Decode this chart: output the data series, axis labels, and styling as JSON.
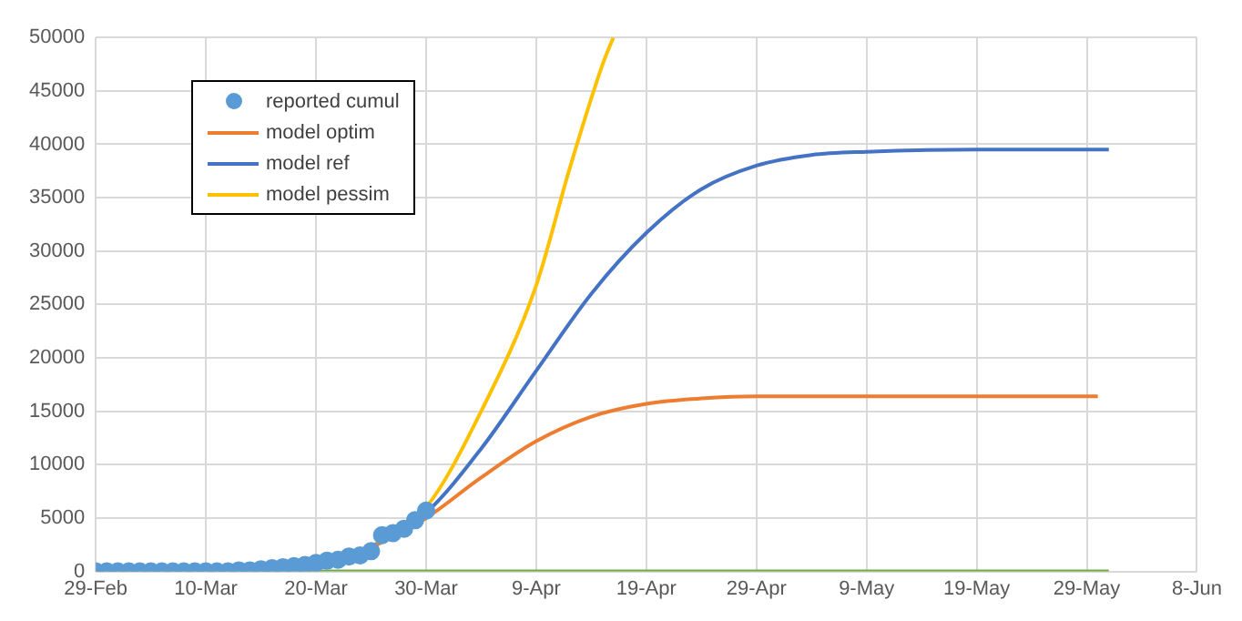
{
  "chart_data": {
    "type": "line",
    "xlim": [
      "--02-29",
      "--06-08"
    ],
    "xticks": [
      {
        "value": "--02-29",
        "label": "29-Feb"
      },
      {
        "value": "--03-10",
        "label": "10-Mar"
      },
      {
        "value": "--03-20",
        "label": "20-Mar"
      },
      {
        "value": "--03-30",
        "label": "30-Mar"
      },
      {
        "value": "--04-09",
        "label": "9-Apr"
      },
      {
        "value": "--04-19",
        "label": "19-Apr"
      },
      {
        "value": "--04-29",
        "label": "29-Apr"
      },
      {
        "value": "--05-09",
        "label": "9-May"
      },
      {
        "value": "--05-19",
        "label": "19-May"
      },
      {
        "value": "--05-29",
        "label": "29-May"
      },
      {
        "value": "--06-08",
        "label": "8-Jun"
      }
    ],
    "ylim": [
      0,
      50000
    ],
    "yticks": [
      0,
      5000,
      10000,
      15000,
      20000,
      25000,
      30000,
      35000,
      40000,
      45000,
      50000
    ],
    "grid": true,
    "legend": "top left",
    "line_style": "solid",
    "marker": "none",
    "series": [
      {
        "name": "reported cumul",
        "type": "scatter",
        "marker": "circle",
        "color": "#5b9bd5",
        "x": [
          "--02-29",
          "--03-01",
          "--03-02",
          "--03-03",
          "--03-04",
          "--03-05",
          "--03-06",
          "--03-07",
          "--03-08",
          "--03-09",
          "--03-10",
          "--03-11",
          "--03-12",
          "--03-13",
          "--03-14",
          "--03-15",
          "--03-16",
          "--03-17",
          "--03-18",
          "--03-19",
          "--03-20",
          "--03-21",
          "--03-22",
          "--03-23",
          "--03-24",
          "--03-25",
          "--03-26",
          "--03-27",
          "--03-28",
          "--03-29",
          "--03-30"
        ],
        "values": [
          0,
          0,
          0,
          0,
          0,
          0,
          0,
          0,
          0,
          0,
          0,
          0,
          0,
          100,
          100,
          200,
          300,
          400,
          500,
          600,
          800,
          1000,
          1100,
          1400,
          1500,
          1900,
          3400,
          3600,
          4000,
          4800,
          5700
        ]
      },
      {
        "name": "model optim",
        "color": "#ed7d31",
        "x": [
          "--03-25",
          "--03-30",
          "--04-04",
          "--04-09",
          "--04-14",
          "--04-19",
          "--04-24",
          "--04-29",
          "--05-09",
          "--05-30"
        ],
        "values": [
          2200,
          5000,
          8800,
          12200,
          14500,
          15700,
          16200,
          16400,
          16400,
          16400
        ]
      },
      {
        "name": "model ref",
        "color": "#4472c4",
        "x": [
          "--03-25",
          "--03-30",
          "--04-04",
          "--04-09",
          "--04-14",
          "--04-19",
          "--04-24",
          "--04-29",
          "--05-04",
          "--05-09",
          "--05-19",
          "--05-31"
        ],
        "values": [
          2200,
          5500,
          11500,
          18800,
          26000,
          31700,
          35800,
          38000,
          39000,
          39300,
          39500,
          39500
        ]
      },
      {
        "name": "model pessim",
        "color": "#ffc000",
        "x": [
          "--03-25",
          "--03-30",
          "--04-04",
          "--04-09",
          "--04-12",
          "--04-15",
          "--04-16"
        ],
        "values": [
          2300,
          6000,
          15000,
          26800,
          37600,
          47400,
          50000
        ]
      },
      {
        "color": "#70ad47",
        "x": [
          "--02-29",
          "--05-31"
        ],
        "values": [
          0,
          0
        ]
      }
    ]
  }
}
